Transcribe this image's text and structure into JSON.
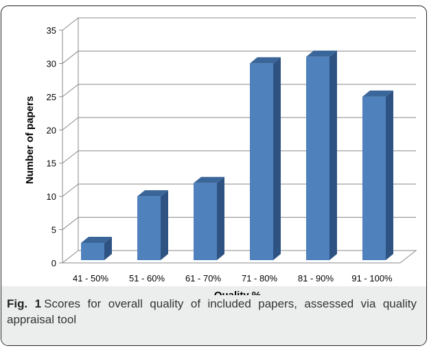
{
  "chart_data": {
    "type": "bar",
    "categories": [
      "41 - 50%",
      "51 - 60%",
      "61 - 70%",
      "71 - 80%",
      "81 - 90%",
      "91 - 100%"
    ],
    "values": [
      3,
      10,
      12,
      30,
      31,
      25
    ],
    "xlabel": "Quality %",
    "ylabel": "Number of papers",
    "ylim": [
      0,
      35
    ],
    "yticks": [
      0,
      5,
      10,
      15,
      20,
      25,
      30,
      35
    ],
    "grid": true,
    "style": "3d-column",
    "colors": {
      "front": "#4f81bd",
      "top": "#3a669a",
      "side": "#2e5382"
    }
  },
  "caption": {
    "label": "Fig. 1",
    "text": "Scores for overall quality of included papers, assessed via quality appraisal tool"
  }
}
